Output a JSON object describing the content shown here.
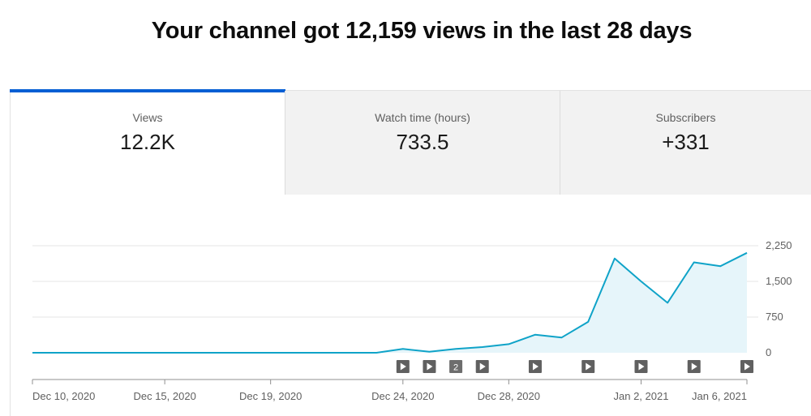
{
  "headline": "Your channel got 12,159 views in the last 28 days",
  "tabs": [
    {
      "label": "Views",
      "value": "12.2K",
      "active": true
    },
    {
      "label": "Watch time (hours)",
      "value": "733.5",
      "active": false
    },
    {
      "label": "Subscribers",
      "value": "+331",
      "active": false
    }
  ],
  "colors": {
    "accent": "#065fd4",
    "line": "#0fa3c8",
    "area": "#e6f5fa",
    "grid": "#e5e5e5"
  },
  "chart_data": {
    "type": "area",
    "title": "",
    "xlabel": "",
    "ylabel": "",
    "ylim": [
      0,
      2250
    ],
    "y_ticks": [
      "2,250",
      "1,500",
      "750",
      "0"
    ],
    "y_tick_values": [
      2250,
      1500,
      750,
      0
    ],
    "x_tick_labels": [
      "Dec 10, 2020",
      "Dec 15, 2020",
      "Dec 19, 2020",
      "Dec 24, 2020",
      "Dec 28, 2020",
      "Jan 2, 2021",
      "Jan 6, 2021"
    ],
    "x": [
      "2020-12-10",
      "2020-12-11",
      "2020-12-12",
      "2020-12-13",
      "2020-12-14",
      "2020-12-15",
      "2020-12-16",
      "2020-12-17",
      "2020-12-18",
      "2020-12-19",
      "2020-12-20",
      "2020-12-21",
      "2020-12-22",
      "2020-12-23",
      "2020-12-24",
      "2020-12-25",
      "2020-12-26",
      "2020-12-27",
      "2020-12-28",
      "2020-12-29",
      "2020-12-30",
      "2020-12-31",
      "2021-01-01",
      "2021-01-02",
      "2021-01-03",
      "2021-01-04",
      "2021-01-05",
      "2021-01-06"
    ],
    "series": [
      {
        "values": [
          0,
          0,
          0,
          0,
          0,
          0,
          0,
          0,
          0,
          0,
          0,
          0,
          0,
          0,
          80,
          20,
          80,
          120,
          180,
          380,
          320,
          650,
          1980,
          1500,
          1050,
          1900,
          1820,
          2100
        ]
      }
    ],
    "video_markers": [
      {
        "date": "2020-12-24",
        "label": ""
      },
      {
        "date": "2020-12-25",
        "label": ""
      },
      {
        "date": "2020-12-26",
        "label": "2"
      },
      {
        "date": "2020-12-27",
        "label": ""
      },
      {
        "date": "2020-12-29",
        "label": ""
      },
      {
        "date": "2020-12-31",
        "label": ""
      },
      {
        "date": "2021-01-02",
        "label": ""
      },
      {
        "date": "2021-01-04",
        "label": ""
      },
      {
        "date": "2021-01-06",
        "label": ""
      }
    ]
  }
}
